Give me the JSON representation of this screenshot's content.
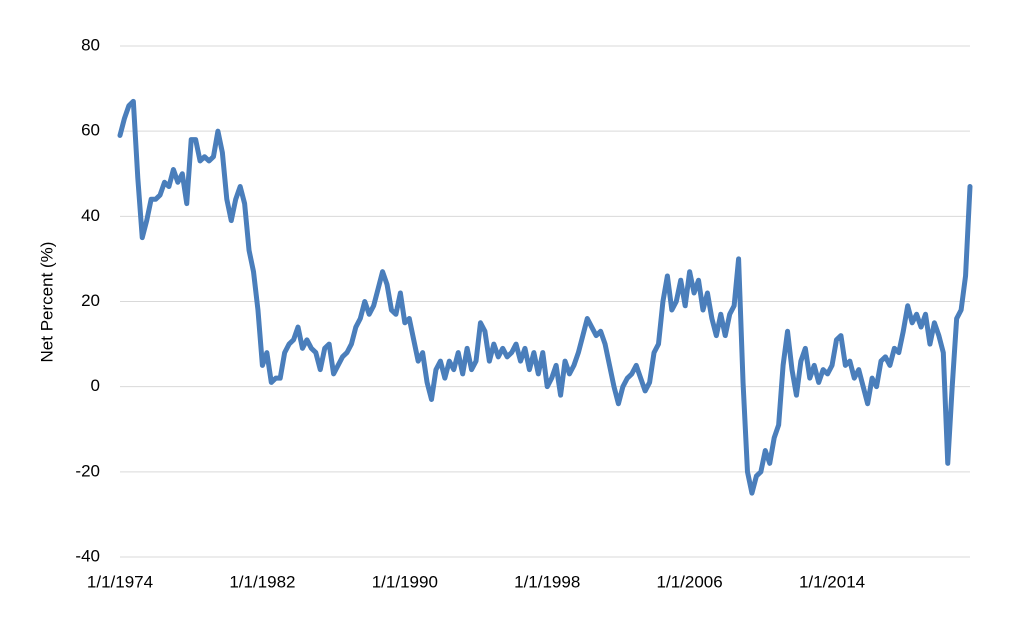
{
  "chart_data": {
    "type": "line",
    "y_label": "Net Percent (%)",
    "color": "#4a7ebb",
    "grid": true,
    "ylim": [
      -40,
      80
    ],
    "yticks": [
      -40,
      -20,
      0,
      20,
      40,
      60,
      80
    ],
    "xlim": [
      "1/1/1974",
      "10/1/2021"
    ],
    "xticks": [
      "1/1/1974",
      "1/1/1982",
      "1/1/1990",
      "1/1/1998",
      "1/1/2006",
      "1/1/2014"
    ],
    "x": [
      "1/1/1974",
      "4/1/1974",
      "7/1/1974",
      "10/1/1974",
      "1/1/1975",
      "4/1/1975",
      "7/1/1975",
      "10/1/1975",
      "1/1/1976",
      "4/1/1976",
      "7/1/1976",
      "10/1/1976",
      "1/1/1977",
      "4/1/1977",
      "7/1/1977",
      "10/1/1977",
      "1/1/1978",
      "4/1/1978",
      "7/1/1978",
      "10/1/1978",
      "1/1/1979",
      "4/1/1979",
      "7/1/1979",
      "10/1/1979",
      "1/1/1980",
      "4/1/1980",
      "7/1/1980",
      "10/1/1980",
      "1/1/1981",
      "4/1/1981",
      "7/1/1981",
      "10/1/1981",
      "1/1/1982",
      "4/1/1982",
      "7/1/1982",
      "10/1/1982",
      "1/1/1983",
      "4/1/1983",
      "7/1/1983",
      "10/1/1983",
      "1/1/1984",
      "4/1/1984",
      "7/1/1984",
      "10/1/1984",
      "1/1/1985",
      "4/1/1985",
      "7/1/1985",
      "10/1/1985",
      "1/1/1986",
      "4/1/1986",
      "7/1/1986",
      "10/1/1986",
      "1/1/1987",
      "4/1/1987",
      "7/1/1987",
      "10/1/1987",
      "1/1/1988",
      "4/1/1988",
      "7/1/1988",
      "10/1/1988",
      "1/1/1989",
      "4/1/1989",
      "7/1/1989",
      "10/1/1989",
      "1/1/1990",
      "4/1/1990",
      "7/1/1990",
      "10/1/1990",
      "1/1/1991",
      "4/1/1991",
      "7/1/1991",
      "10/1/1991",
      "1/1/1992",
      "4/1/1992",
      "7/1/1992",
      "10/1/1992",
      "1/1/1993",
      "4/1/1993",
      "7/1/1993",
      "10/1/1993",
      "1/1/1994",
      "4/1/1994",
      "7/1/1994",
      "10/1/1994",
      "1/1/1995",
      "4/1/1995",
      "7/1/1995",
      "10/1/1995",
      "1/1/1996",
      "4/1/1996",
      "7/1/1996",
      "10/1/1996",
      "1/1/1997",
      "4/1/1997",
      "7/1/1997",
      "10/1/1997",
      "1/1/1998",
      "4/1/1998",
      "7/1/1998",
      "10/1/1998",
      "1/1/1999",
      "4/1/1999",
      "7/1/1999",
      "10/1/1999",
      "1/1/2000",
      "4/1/2000",
      "7/1/2000",
      "10/1/2000",
      "1/1/2001",
      "4/1/2001",
      "7/1/2001",
      "10/1/2001",
      "1/1/2002",
      "4/1/2002",
      "7/1/2002",
      "10/1/2002",
      "1/1/2003",
      "4/1/2003",
      "7/1/2003",
      "10/1/2003",
      "1/1/2004",
      "4/1/2004",
      "7/1/2004",
      "10/1/2004",
      "1/1/2005",
      "4/1/2005",
      "7/1/2005",
      "10/1/2005",
      "1/1/2006",
      "4/1/2006",
      "7/1/2006",
      "10/1/2006",
      "1/1/2007",
      "4/1/2007",
      "7/1/2007",
      "10/1/2007",
      "1/1/2008",
      "4/1/2008",
      "7/1/2008",
      "10/1/2008",
      "1/1/2009",
      "4/1/2009",
      "7/1/2009",
      "10/1/2009",
      "1/1/2010",
      "4/1/2010",
      "7/1/2010",
      "10/1/2010",
      "1/1/2011",
      "4/1/2011",
      "7/1/2011",
      "10/1/2011",
      "1/1/2012",
      "4/1/2012",
      "7/1/2012",
      "10/1/2012",
      "1/1/2013",
      "4/1/2013",
      "7/1/2013",
      "10/1/2013",
      "1/1/2014",
      "4/1/2014",
      "7/1/2014",
      "10/1/2014",
      "1/1/2015",
      "4/1/2015",
      "7/1/2015",
      "10/1/2015",
      "1/1/2016",
      "4/1/2016",
      "7/1/2016",
      "10/1/2016",
      "1/1/2017",
      "4/1/2017",
      "7/1/2017",
      "10/1/2017",
      "1/1/2018",
      "4/1/2018",
      "7/1/2018",
      "10/1/2018",
      "1/1/2019",
      "4/1/2019",
      "7/1/2019",
      "10/1/2019",
      "1/1/2020",
      "4/1/2020",
      "7/1/2020",
      "10/1/2020",
      "1/1/2021",
      "4/1/2021",
      "7/1/2021",
      "10/1/2021"
    ],
    "values": [
      59,
      63,
      66,
      67,
      49,
      35,
      39,
      44,
      44,
      45,
      48,
      47,
      51,
      48,
      50,
      43,
      58,
      58,
      53,
      54,
      53,
      54,
      60,
      55,
      44,
      39,
      44,
      47,
      43,
      32,
      27,
      18,
      5,
      8,
      1,
      2,
      2,
      8,
      10,
      11,
      14,
      9,
      11,
      9,
      8,
      4,
      9,
      10,
      3,
      5,
      7,
      8,
      10,
      14,
      16,
      20,
      17,
      19,
      23,
      27,
      24,
      18,
      17,
      22,
      15,
      16,
      11,
      6,
      8,
      1,
      -3,
      4,
      6,
      2,
      6,
      4,
      8,
      3,
      9,
      4,
      6,
      15,
      13,
      6,
      10,
      7,
      9,
      7,
      8,
      10,
      6,
      9,
      4,
      8,
      3,
      8,
      0,
      2,
      5,
      -2,
      6,
      3,
      5,
      8,
      12,
      16,
      14,
      12,
      13,
      10,
      5,
      0,
      -4,
      0,
      2,
      3,
      5,
      2,
      -1,
      1,
      8,
      10,
      20,
      26,
      18,
      20,
      25,
      19,
      27,
      22,
      25,
      18,
      22,
      16,
      12,
      17,
      12,
      17,
      19,
      30,
      1,
      -20,
      -25,
      -21,
      -20,
      -15,
      -18,
      -12,
      -9,
      5,
      13,
      4,
      -2,
      6,
      9,
      2,
      5,
      1,
      4,
      3,
      5,
      11,
      12,
      5,
      6,
      2,
      4,
      0,
      -4,
      2,
      0,
      6,
      7,
      5,
      9,
      8,
      13,
      19,
      15,
      17,
      14,
      17,
      10,
      15,
      12,
      8,
      -18,
      0,
      16,
      18,
      26,
      47
    ]
  }
}
